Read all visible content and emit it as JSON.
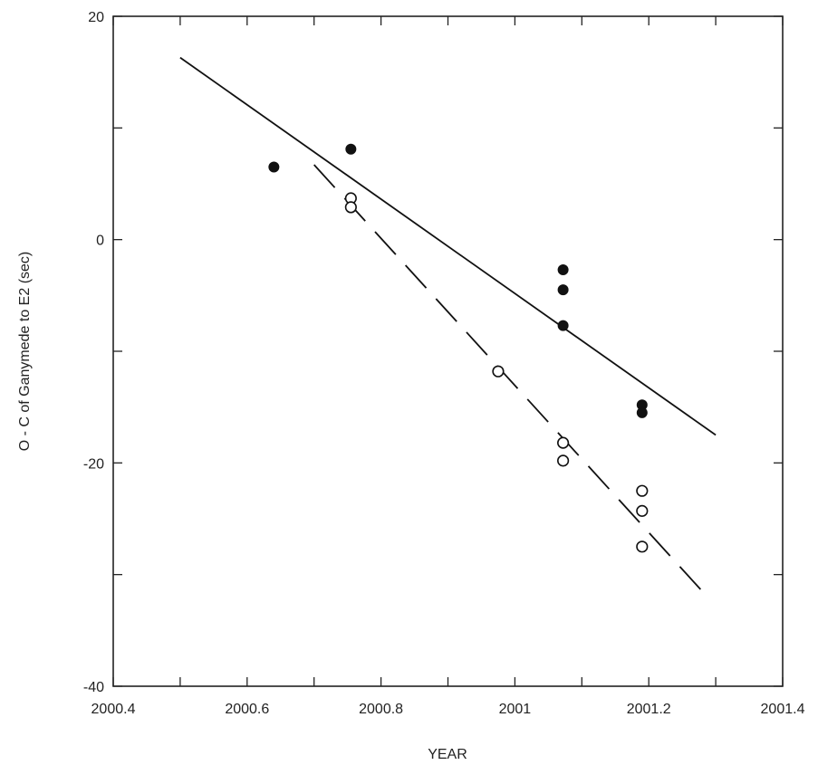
{
  "chart_data": {
    "type": "scatter",
    "title": "",
    "xlabel": "YEAR",
    "ylabel": "O - C of Ganymede to E2 (sec)",
    "xlim": [
      2000.4,
      2001.4
    ],
    "ylim": [
      -40,
      20
    ],
    "x_major_ticks": [
      2000.4,
      2000.6,
      2000.8,
      2001,
      2001.2,
      2001.4
    ],
    "x_tick_labels": [
      "2000.4",
      "2000.6",
      "2000.8",
      "2001",
      "2001.2",
      "2001.4"
    ],
    "y_major_ticks": [
      -40,
      -20,
      0,
      20
    ],
    "y_tick_labels": [
      "-40",
      "-20",
      "0",
      "20"
    ],
    "x_minor_ticks": [
      2000.5,
      2000.7,
      2000.9,
      2001.1,
      2001.3
    ],
    "y_minor_ticks": [
      -30,
      -10,
      10
    ],
    "grid": false,
    "legend": "none",
    "series": [
      {
        "marker": "filled-circle",
        "points": [
          {
            "x": 2000.64,
            "y": 6.5
          },
          {
            "x": 2000.755,
            "y": 8.1
          },
          {
            "x": 2001.072,
            "y": -2.7
          },
          {
            "x": 2001.072,
            "y": -4.5
          },
          {
            "x": 2001.072,
            "y": -7.7
          },
          {
            "x": 2001.19,
            "y": -14.8
          },
          {
            "x": 2001.19,
            "y": -15.5
          }
        ]
      },
      {
        "marker": "open-circle",
        "points": [
          {
            "x": 2000.755,
            "y": 3.7
          },
          {
            "x": 2000.755,
            "y": 2.9
          },
          {
            "x": 2000.975,
            "y": -11.8
          },
          {
            "x": 2001.072,
            "y": -18.2
          },
          {
            "x": 2001.072,
            "y": -19.8
          },
          {
            "x": 2001.19,
            "y": -22.5
          },
          {
            "x": 2001.19,
            "y": -24.3
          },
          {
            "x": 2001.19,
            "y": -27.5
          }
        ]
      }
    ],
    "fit_lines": [
      {
        "style": "solid",
        "x": [
          2000.5,
          2001.3
        ],
        "y": [
          16.3,
          -17.5
        ]
      },
      {
        "style": "dashed",
        "x": [
          2000.7,
          2001.28
        ],
        "y": [
          6.7,
          -31.5
        ]
      }
    ]
  }
}
